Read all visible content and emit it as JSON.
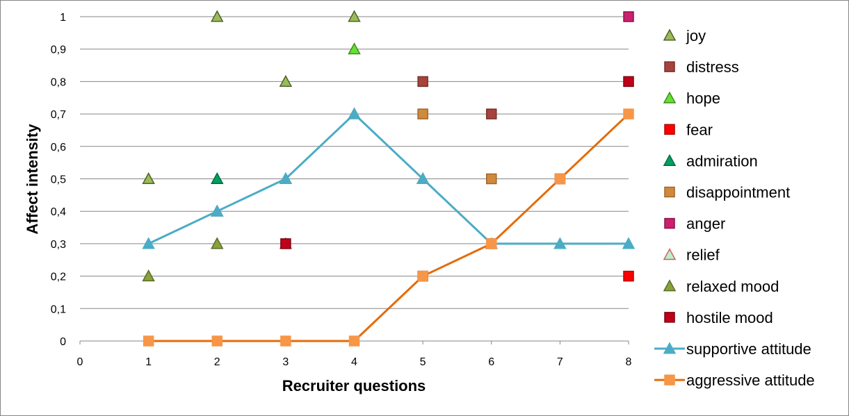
{
  "chart_data": {
    "type": "scatter",
    "xlabel": "Recruiter questions",
    "ylabel": "Affect intensity",
    "xlim": [
      0,
      8
    ],
    "ylim": [
      0,
      1
    ],
    "x_ticks": [
      "0",
      "1",
      "2",
      "3",
      "4",
      "5",
      "6",
      "7",
      "8"
    ],
    "y_ticks": [
      "0",
      "0,1",
      "0,2",
      "0,3",
      "0,4",
      "0,5",
      "0,6",
      "0,7",
      "0,8",
      "0,9",
      "1"
    ],
    "grid": "horizontal",
    "legend_position": "right",
    "series": [
      {
        "name": "joy",
        "marker": "triangle",
        "line": false,
        "fill": "#9bbb59",
        "stroke": "#4f6228",
        "points": [
          [
            1,
            0.5
          ],
          [
            2,
            1
          ],
          [
            3,
            0.8
          ],
          [
            4,
            1
          ]
        ]
      },
      {
        "name": "distress",
        "marker": "square",
        "line": false,
        "fill": "#a5433c",
        "stroke": "#7a2f2a",
        "points": [
          [
            5,
            0.8
          ],
          [
            6,
            0.7
          ]
        ]
      },
      {
        "name": "hope",
        "marker": "triangle",
        "line": false,
        "fill": "#66e033",
        "stroke": "#3d8c1f",
        "points": [
          [
            4,
            0.9
          ]
        ]
      },
      {
        "name": "fear",
        "marker": "square",
        "line": false,
        "fill": "#ff0000",
        "stroke": "#b30000",
        "points": [
          [
            8,
            0.2
          ]
        ]
      },
      {
        "name": "admiration",
        "marker": "triangle",
        "line": false,
        "fill": "#00a060",
        "stroke": "#006b3f",
        "points": [
          [
            2,
            0.5
          ]
        ]
      },
      {
        "name": "disappointment",
        "marker": "square",
        "line": false,
        "fill": "#d08a3c",
        "stroke": "#a0652a",
        "points": [
          [
            5,
            0.7
          ],
          [
            6,
            0.5
          ]
        ]
      },
      {
        "name": "anger",
        "marker": "square",
        "line": false,
        "fill": "#cc1f6f",
        "stroke": "#8a1448",
        "points": [
          [
            8,
            1
          ]
        ]
      },
      {
        "name": "relief",
        "marker": "triangle",
        "line": false,
        "fill": "#b9f0d0",
        "stroke": "#d0605a",
        "points": [
          [
            3,
            0.3
          ]
        ]
      },
      {
        "name": "relaxed mood",
        "marker": "triangle",
        "line": false,
        "fill": "#8aa23c",
        "stroke": "#5a6b24",
        "points": [
          [
            1,
            0.2
          ],
          [
            2,
            0.3
          ],
          [
            2,
            0.4
          ],
          [
            3,
            0.5
          ],
          [
            4,
            0.7
          ],
          [
            5,
            0.5
          ]
        ]
      },
      {
        "name": "hostile mood",
        "marker": "square",
        "line": false,
        "fill": "#c00018",
        "stroke": "#7a0010",
        "points": [
          [
            3,
            0.3
          ],
          [
            5,
            0.2
          ],
          [
            6,
            0.3
          ],
          [
            7,
            0.5
          ],
          [
            8,
            0.8
          ]
        ]
      },
      {
        "name": "supportive attitude",
        "marker": "triangle",
        "line": true,
        "fill": "#4bacc6",
        "stroke": "#4bacc6",
        "points": [
          [
            1,
            0.3
          ],
          [
            2,
            0.4
          ],
          [
            3,
            0.5
          ],
          [
            4,
            0.7
          ],
          [
            5,
            0.5
          ],
          [
            6,
            0.3
          ],
          [
            7,
            0.3
          ],
          [
            8,
            0.3
          ]
        ]
      },
      {
        "name": "aggressive attitude",
        "marker": "square",
        "line": true,
        "fill": "#f79646",
        "stroke": "#e46c0a",
        "points": [
          [
            1,
            0
          ],
          [
            2,
            0
          ],
          [
            3,
            0
          ],
          [
            4,
            0
          ],
          [
            5,
            0.2
          ],
          [
            6,
            0.3
          ],
          [
            7,
            0.5
          ],
          [
            8,
            0.7
          ]
        ]
      }
    ]
  }
}
